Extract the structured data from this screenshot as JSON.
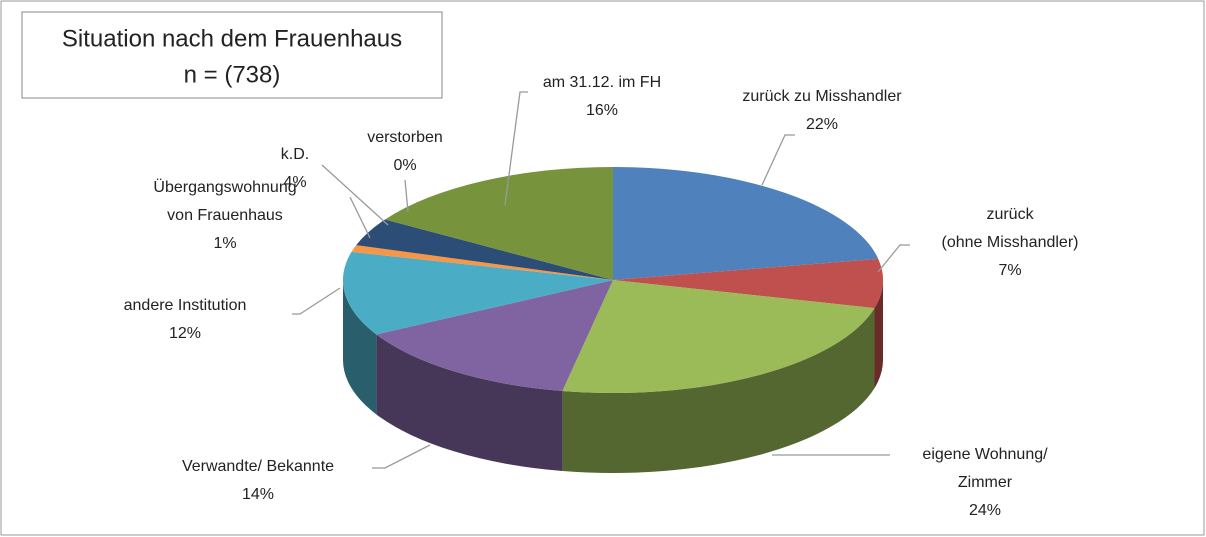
{
  "chart_data": {
    "type": "pie3d",
    "title": "Situation nach dem Frauenhaus",
    "subtitle": "n = (738)",
    "categories": [
      "zurück zu Misshandler",
      "zurück\n(ohne Misshandler)",
      "eigene Wohnung/\nZimmer",
      "Verwandte/ Bekannte",
      "andere Institution",
      "Übergangswohnung\nvon Frauenhaus",
      "k.D.",
      "verstorben",
      "am 31.12. im FH"
    ],
    "values": [
      22,
      7,
      24,
      14,
      12,
      1,
      4,
      0,
      16
    ],
    "value_labels": [
      "22%",
      "7%",
      "24%",
      "14%",
      "12%",
      "1%",
      "4%",
      "0%",
      "16%"
    ],
    "colors": [
      "#4f81bd",
      "#c0504d",
      "#9bbb59",
      "#8064a2",
      "#4bacc6",
      "#f79646",
      "#2c4d75",
      "#772c2a",
      "#77933c"
    ]
  }
}
